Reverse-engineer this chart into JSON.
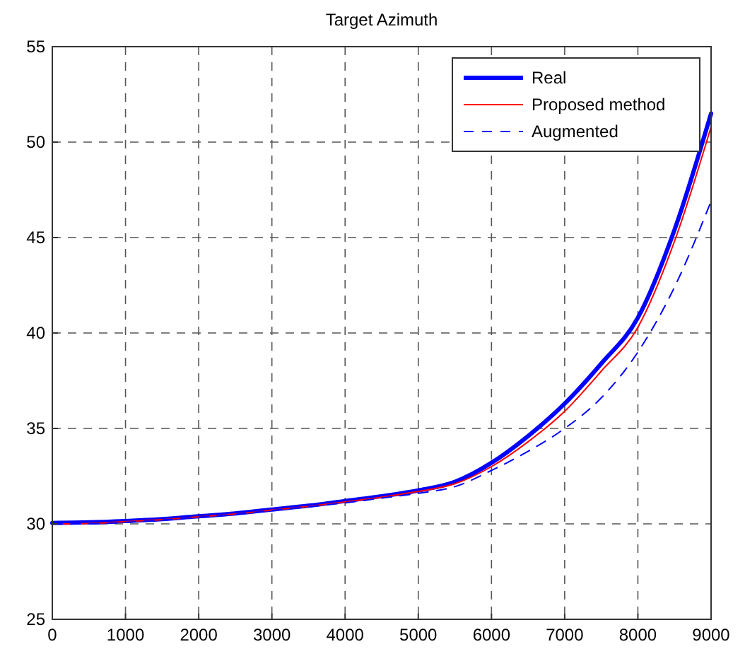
{
  "chart_data": {
    "type": "line",
    "title": "Target Azimuth",
    "x": [
      0,
      500,
      1000,
      1500,
      2000,
      2500,
      3000,
      3500,
      4000,
      4500,
      5000,
      5500,
      6000,
      6500,
      7000,
      7500,
      8000,
      8500,
      9000
    ],
    "series": [
      {
        "name": "Real",
        "color": "#0000ff",
        "line_style": "solid",
        "values": [
          30.05,
          30.08,
          30.15,
          30.25,
          30.4,
          30.55,
          30.75,
          30.95,
          31.2,
          31.45,
          31.75,
          32.2,
          33.2,
          34.6,
          36.3,
          38.4,
          40.8,
          45.4,
          51.5
        ]
      },
      {
        "name": "Proposed method",
        "color": "#ff0000",
        "line_style": "solid",
        "values": [
          30.0,
          30.02,
          30.12,
          30.22,
          30.37,
          30.52,
          30.72,
          30.92,
          31.15,
          31.4,
          31.7,
          32.1,
          33.0,
          34.3,
          35.9,
          38.0,
          40.3,
          44.8,
          50.8
        ]
      },
      {
        "name": "Augmented",
        "color": "#0000ff",
        "line_style": "dashed",
        "values": [
          30.0,
          30.0,
          30.08,
          30.2,
          30.35,
          30.5,
          30.7,
          30.9,
          31.1,
          31.35,
          31.6,
          31.95,
          32.8,
          33.8,
          35.0,
          36.6,
          39.0,
          42.4,
          46.9
        ]
      }
    ],
    "xlim": [
      0,
      9000
    ],
    "xticks": [
      0,
      1000,
      2000,
      3000,
      4000,
      5000,
      6000,
      7000,
      8000,
      9000
    ],
    "ylim": [
      25,
      55
    ],
    "yticks": [
      25,
      30,
      35,
      40,
      45,
      50,
      55
    ],
    "grid": true,
    "legend": "top right"
  }
}
